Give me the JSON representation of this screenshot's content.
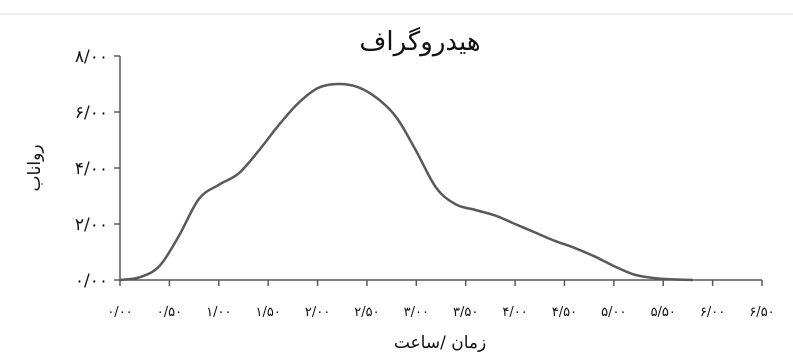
{
  "chart_data": {
    "type": "line",
    "title": "هیدروگراف",
    "xlabel": "زمان /ساعت",
    "ylabel": "رواناب",
    "ylim": [
      0,
      8
    ],
    "xlim": [
      0,
      6.5
    ],
    "y_tick_labels": [
      "۰/۰۰",
      "۲/۰۰",
      "۴/۰۰",
      "۶/۰۰",
      "۸/۰۰"
    ],
    "y_tick_values": [
      0,
      2,
      4,
      6,
      8
    ],
    "x_tick_labels": [
      "۰/۰۰",
      "۰/۵۰",
      "۱/۰۰",
      "۱/۵۰",
      "۲/۰۰",
      "۲/۵۰",
      "۳/۰۰",
      "۳/۵۰",
      "۴/۰۰",
      "۴/۵۰",
      "۵/۰۰",
      "۵/۵۰",
      "۶/۰۰",
      "۶/۵۰"
    ],
    "x_tick_values": [
      0,
      0.5,
      1,
      1.5,
      2,
      2.5,
      3,
      3.5,
      4,
      4.5,
      5,
      5.5,
      6,
      6.5
    ],
    "grid": false,
    "series": [
      {
        "x": [
          0,
          0.2,
          0.4,
          0.6,
          0.8,
          1.0,
          1.2,
          1.4,
          1.6,
          1.8,
          2.0,
          2.2,
          2.4,
          2.6,
          2.8,
          3.0,
          3.2,
          3.4,
          3.6,
          3.8,
          4.0,
          4.2,
          4.4,
          4.6,
          4.8,
          5.0,
          5.2,
          5.4,
          5.6,
          5.8
        ],
        "values": [
          0.0,
          0.1,
          0.5,
          1.6,
          2.9,
          3.4,
          3.8,
          4.6,
          5.5,
          6.3,
          6.85,
          7.0,
          6.9,
          6.5,
          5.8,
          4.6,
          3.3,
          2.7,
          2.5,
          2.3,
          2.0,
          1.7,
          1.4,
          1.15,
          0.85,
          0.5,
          0.2,
          0.07,
          0.02,
          0.0
        ],
        "color": "#595959"
      }
    ],
    "axis_color": "#595959"
  }
}
